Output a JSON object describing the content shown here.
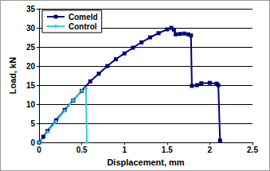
{
  "chart_data": {
    "type": "line",
    "x_label": "Displacement, mm",
    "y_label": "Load, kN",
    "series": [
      {
        "name": "Comeld",
        "color": "#000080",
        "marker": "square",
        "line_style": "solid",
        "x": [
          0,
          0.05,
          0.1,
          0.2,
          0.3,
          0.4,
          0.5,
          0.6,
          0.7,
          0.8,
          0.9,
          1.0,
          1.1,
          1.2,
          1.3,
          1.4,
          1.5,
          1.55,
          1.58,
          1.6,
          1.65,
          1.7,
          1.75,
          1.78,
          1.79,
          1.85,
          1.9,
          2.0,
          2.08,
          2.1,
          2.12
        ],
        "values": [
          0,
          1.5,
          3,
          5.8,
          8.5,
          11,
          13.5,
          16,
          18,
          20,
          21.8,
          23.3,
          24.8,
          26.2,
          27.5,
          28.6,
          29.6,
          30,
          29.5,
          28.3,
          28.4,
          28.5,
          28.3,
          28,
          14.8,
          15,
          15.5,
          15.6,
          15.4,
          15,
          0.5
        ]
      },
      {
        "name": "Control",
        "color": "#33cccc",
        "marker": "diamond",
        "line_style": "solid",
        "x": [
          0,
          0.1,
          0.2,
          0.3,
          0.4,
          0.5,
          0.55,
          0.56
        ],
        "values": [
          0,
          2.8,
          5.5,
          8.3,
          11,
          13.5,
          14.2,
          0
        ]
      }
    ],
    "xlim": [
      0,
      2.5
    ],
    "xticks": [
      0,
      0.5,
      1,
      1.5,
      2,
      2.5
    ],
    "ylim": [
      0,
      35
    ],
    "yticks": [
      0,
      5,
      10,
      15,
      20,
      25,
      30,
      35
    ],
    "grid": true,
    "legend": "upper left"
  }
}
